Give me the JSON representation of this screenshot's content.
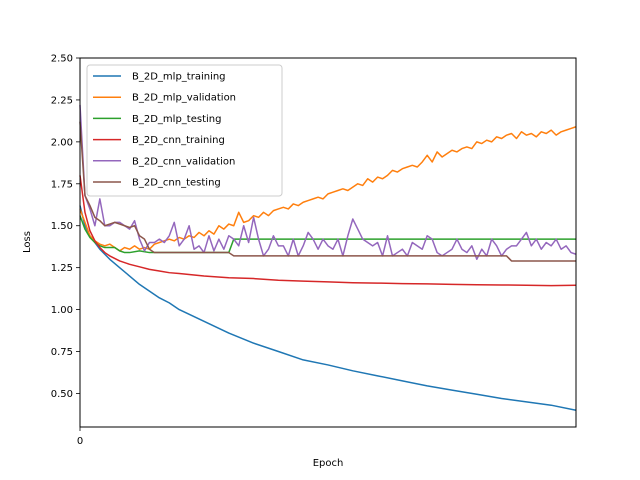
{
  "chart_data": {
    "type": "line",
    "title": "",
    "xlabel": "Epoch",
    "ylabel": "Loss",
    "xlim": [
      0,
      100
    ],
    "ylim": [
      0.3,
      2.5
    ],
    "xticks": [
      0
    ],
    "xtick_labels": [
      "0"
    ],
    "yticks": [
      0.5,
      0.75,
      1.0,
      1.25,
      1.5,
      1.75,
      2.0,
      2.25,
      2.5
    ],
    "ytick_labels": [
      "0.50",
      "0.75",
      "1.00",
      "1.25",
      "1.50",
      "1.75",
      "2.00",
      "2.25",
      "2.50"
    ],
    "grid": false,
    "legend_position": "top-left",
    "series": [
      {
        "name": "B_2D_mlp_training",
        "color": "#1f77b4",
        "x": [
          0,
          1,
          2,
          3,
          4,
          6,
          8,
          10,
          12,
          14,
          16,
          18,
          20,
          25,
          30,
          35,
          40,
          45,
          50,
          55,
          60,
          65,
          70,
          75,
          80,
          85,
          90,
          95,
          100
        ],
        "y": [
          1.62,
          1.5,
          1.44,
          1.4,
          1.36,
          1.3,
          1.25,
          1.2,
          1.15,
          1.11,
          1.07,
          1.04,
          1.0,
          0.93,
          0.86,
          0.8,
          0.75,
          0.7,
          0.67,
          0.635,
          0.605,
          0.575,
          0.545,
          0.52,
          0.495,
          0.47,
          0.45,
          0.43,
          0.4
        ]
      },
      {
        "name": "B_2D_mlp_validation",
        "color": "#ff7f0e",
        "x": [
          0,
          1,
          2,
          3,
          4,
          5,
          6,
          7,
          8,
          9,
          10,
          11,
          12,
          13,
          14,
          15,
          16,
          17,
          18,
          19,
          20,
          21,
          22,
          23,
          24,
          25,
          26,
          27,
          28,
          29,
          30,
          31,
          32,
          33,
          34,
          35,
          36,
          37,
          38,
          39,
          40,
          41,
          42,
          43,
          44,
          45,
          46,
          47,
          48,
          49,
          50,
          51,
          52,
          53,
          54,
          55,
          56,
          57,
          58,
          59,
          60,
          61,
          62,
          63,
          64,
          65,
          66,
          67,
          68,
          69,
          70,
          71,
          72,
          73,
          74,
          75,
          76,
          77,
          78,
          79,
          80,
          81,
          82,
          83,
          84,
          85,
          86,
          87,
          88,
          89,
          90,
          91,
          92,
          93,
          94,
          95,
          96,
          97,
          98,
          99,
          100
        ],
        "y": [
          1.6,
          1.52,
          1.44,
          1.41,
          1.39,
          1.38,
          1.39,
          1.37,
          1.35,
          1.37,
          1.36,
          1.38,
          1.36,
          1.37,
          1.36,
          1.39,
          1.4,
          1.41,
          1.42,
          1.41,
          1.43,
          1.42,
          1.44,
          1.43,
          1.46,
          1.44,
          1.47,
          1.45,
          1.5,
          1.48,
          1.51,
          1.5,
          1.58,
          1.52,
          1.53,
          1.56,
          1.55,
          1.58,
          1.56,
          1.59,
          1.6,
          1.61,
          1.6,
          1.63,
          1.62,
          1.64,
          1.65,
          1.66,
          1.67,
          1.66,
          1.69,
          1.7,
          1.71,
          1.72,
          1.71,
          1.73,
          1.75,
          1.74,
          1.78,
          1.76,
          1.79,
          1.78,
          1.8,
          1.83,
          1.82,
          1.84,
          1.85,
          1.86,
          1.85,
          1.88,
          1.92,
          1.88,
          1.94,
          1.91,
          1.93,
          1.95,
          1.94,
          1.96,
          1.97,
          1.96,
          2.0,
          1.99,
          2.01,
          2.0,
          2.03,
          2.02,
          2.04,
          2.05,
          2.02,
          2.06,
          2.04,
          2.05,
          2.03,
          2.06,
          2.05,
          2.07,
          2.04,
          2.06,
          2.07,
          2.08,
          2.09
        ]
      },
      {
        "name": "B_2D_mlp_testing",
        "color": "#2ca02c",
        "x": [
          0,
          1,
          2,
          3,
          4,
          5,
          6,
          7,
          8,
          9,
          10,
          12,
          14,
          16,
          18,
          20,
          25,
          30,
          31,
          35,
          40,
          50,
          60,
          70,
          80,
          90,
          100
        ],
        "y": [
          1.56,
          1.48,
          1.43,
          1.4,
          1.38,
          1.37,
          1.37,
          1.37,
          1.35,
          1.34,
          1.34,
          1.35,
          1.34,
          1.34,
          1.34,
          1.34,
          1.34,
          1.34,
          1.42,
          1.42,
          1.42,
          1.42,
          1.42,
          1.42,
          1.42,
          1.42,
          1.42
        ]
      },
      {
        "name": "B_2D_cnn_training",
        "color": "#d62728",
        "x": [
          0,
          1,
          2,
          3,
          4,
          5,
          6,
          8,
          10,
          12,
          14,
          16,
          18,
          20,
          25,
          30,
          35,
          40,
          45,
          50,
          55,
          60,
          65,
          70,
          75,
          80,
          85,
          90,
          95,
          100
        ],
        "y": [
          1.8,
          1.58,
          1.47,
          1.41,
          1.37,
          1.34,
          1.32,
          1.29,
          1.27,
          1.255,
          1.24,
          1.23,
          1.22,
          1.215,
          1.2,
          1.19,
          1.185,
          1.175,
          1.17,
          1.165,
          1.16,
          1.158,
          1.155,
          1.153,
          1.15,
          1.148,
          1.147,
          1.145,
          1.143,
          1.145
        ]
      },
      {
        "name": "B_2D_cnn_validation",
        "color": "#9467bd",
        "x": [
          0,
          1,
          2,
          3,
          4,
          5,
          6,
          7,
          8,
          9,
          10,
          11,
          12,
          13,
          14,
          15,
          16,
          17,
          18,
          19,
          20,
          21,
          22,
          23,
          24,
          25,
          26,
          27,
          28,
          29,
          30,
          31,
          32,
          33,
          34,
          35,
          36,
          37,
          38,
          39,
          40,
          41,
          42,
          43,
          44,
          45,
          46,
          47,
          48,
          49,
          50,
          51,
          52,
          53,
          54,
          55,
          56,
          57,
          58,
          59,
          60,
          61,
          62,
          63,
          64,
          65,
          66,
          67,
          68,
          69,
          70,
          71,
          72,
          73,
          74,
          75,
          76,
          77,
          78,
          79,
          80,
          81,
          82,
          83,
          84,
          85,
          86,
          87,
          88,
          89,
          90,
          91,
          92,
          93,
          94,
          95,
          96,
          97,
          98,
          99,
          100
        ],
        "y": [
          2.22,
          1.68,
          1.6,
          1.5,
          1.66,
          1.5,
          1.5,
          1.52,
          1.52,
          1.5,
          1.48,
          1.53,
          1.42,
          1.35,
          1.4,
          1.4,
          1.42,
          1.4,
          1.44,
          1.52,
          1.38,
          1.42,
          1.5,
          1.36,
          1.38,
          1.34,
          1.44,
          1.35,
          1.42,
          1.36,
          1.44,
          1.42,
          1.38,
          1.5,
          1.4,
          1.55,
          1.42,
          1.32,
          1.36,
          1.44,
          1.38,
          1.38,
          1.32,
          1.42,
          1.32,
          1.38,
          1.46,
          1.42,
          1.36,
          1.42,
          1.38,
          1.36,
          1.42,
          1.32,
          1.44,
          1.54,
          1.48,
          1.42,
          1.4,
          1.38,
          1.4,
          1.32,
          1.44,
          1.32,
          1.34,
          1.36,
          1.32,
          1.4,
          1.38,
          1.36,
          1.44,
          1.42,
          1.34,
          1.32,
          1.34,
          1.36,
          1.42,
          1.36,
          1.34,
          1.38,
          1.3,
          1.36,
          1.32,
          1.42,
          1.38,
          1.32,
          1.36,
          1.38,
          1.38,
          1.42,
          1.46,
          1.38,
          1.42,
          1.36,
          1.4,
          1.38,
          1.42,
          1.36,
          1.38,
          1.34,
          1.33
        ]
      },
      {
        "name": "B_2D_cnn_testing",
        "color": "#8c564b",
        "x": [
          0,
          1,
          2,
          3,
          4,
          5,
          6,
          7,
          8,
          9,
          10,
          11,
          12,
          13,
          14,
          15,
          20,
          25,
          30,
          31,
          35,
          40,
          50,
          60,
          70,
          80,
          86,
          87,
          90,
          95,
          100
        ],
        "y": [
          2.12,
          1.68,
          1.62,
          1.55,
          1.53,
          1.5,
          1.51,
          1.52,
          1.51,
          1.5,
          1.49,
          1.5,
          1.44,
          1.42,
          1.36,
          1.34,
          1.34,
          1.34,
          1.34,
          1.32,
          1.32,
          1.32,
          1.32,
          1.32,
          1.32,
          1.32,
          1.32,
          1.29,
          1.29,
          1.29,
          1.29
        ]
      }
    ]
  }
}
